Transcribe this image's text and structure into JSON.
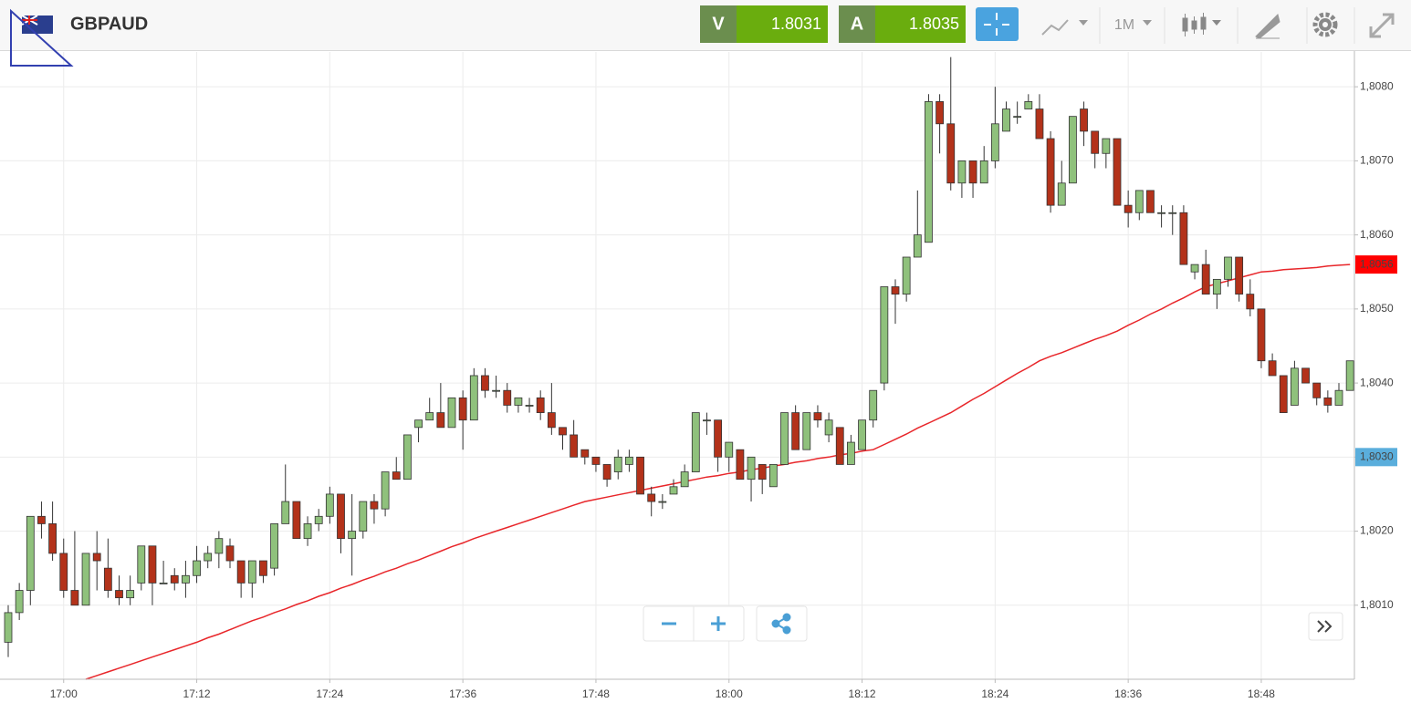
{
  "toolbar": {
    "symbol": "GBPAUD",
    "sell_label": "V",
    "sell_price": "1.8031",
    "buy_label": "A",
    "buy_price": "1.8035",
    "timeframe": "1M"
  },
  "chart_data": {
    "type": "candlestick",
    "categories": [
      null,
      null,
      null,
      null,
      null,
      "17:00",
      null,
      null,
      null,
      null,
      null,
      null,
      null,
      null,
      null,
      null,
      null,
      "17:12",
      null,
      null,
      null,
      null,
      null,
      null,
      null,
      null,
      null,
      null,
      null,
      "17:24",
      null,
      null,
      null,
      null,
      null,
      null,
      null,
      null,
      null,
      null,
      null,
      "17:36",
      null,
      null,
      null,
      null,
      null,
      null,
      null,
      null,
      null,
      null,
      null,
      "17:48",
      null,
      null,
      null,
      null,
      null,
      null,
      null,
      null,
      null,
      null,
      null,
      "18:00",
      null,
      null,
      null,
      null,
      null,
      null,
      null,
      null,
      null,
      null,
      null,
      "18:12",
      null,
      null,
      null,
      null,
      null,
      null,
      null,
      null,
      null,
      null,
      null,
      "18:24",
      null,
      null,
      null,
      null,
      null,
      null,
      null,
      null,
      null,
      null,
      null,
      "18:36",
      null,
      null,
      null,
      null,
      null,
      null,
      null,
      null,
      null,
      null,
      null,
      "18:48",
      null,
      null,
      null,
      null,
      null,
      null,
      null,
      null
    ],
    "open": [
      1.8005,
      1.8009,
      1.8012,
      1.8022,
      1.8021,
      1.8017,
      1.8012,
      1.801,
      1.8017,
      1.8015,
      1.8012,
      1.8011,
      1.8013,
      1.8018,
      1.8013,
      1.8014,
      1.8013,
      1.8014,
      1.8016,
      1.8017,
      1.8018,
      1.8016,
      1.8013,
      1.8016,
      1.8015,
      1.8021,
      1.8024,
      1.8019,
      1.8021,
      1.8022,
      1.8025,
      1.8019,
      1.802,
      1.8024,
      1.8023,
      1.8028,
      1.8027,
      1.8034,
      1.8035,
      1.8036,
      1.8034,
      1.8038,
      1.8035,
      1.8041,
      1.8039,
      1.8039,
      1.8037,
      1.8037,
      1.8038,
      1.8036,
      1.8034,
      1.8033,
      1.8031,
      1.803,
      1.8029,
      1.8028,
      1.8029,
      1.803,
      1.8025,
      1.8024,
      1.8025,
      1.8026,
      1.8028,
      1.8035,
      1.8035,
      1.803,
      1.8031,
      1.8027,
      1.8029,
      1.8026,
      1.8029,
      1.8036,
      1.8031,
      1.8036,
      1.8033,
      1.8034,
      1.8029,
      1.8031,
      1.8035,
      1.804,
      1.8053,
      1.8052,
      1.8057,
      1.8059,
      1.8078,
      1.8075,
      1.8067,
      1.807,
      1.8067,
      1.807,
      1.8074,
      1.8076,
      1.8077,
      1.8077,
      1.8073,
      1.8064,
      1.8067,
      1.8077,
      1.8074,
      1.8071,
      1.8073,
      1.8064,
      1.8063,
      1.8066,
      1.8063,
      1.8063,
      1.8063,
      1.8055,
      1.8056,
      1.8052,
      1.8054,
      1.8057,
      1.8052,
      1.805,
      1.8043,
      1.8041,
      1.8037,
      1.8042,
      1.804,
      1.8038,
      1.8037,
      1.8039
    ],
    "high": [
      1.801,
      1.8013,
      1.8022,
      1.8024,
      1.8024,
      1.8019,
      1.802,
      1.8017,
      1.802,
      1.8019,
      1.8014,
      1.8014,
      1.8018,
      1.8018,
      1.8016,
      1.8015,
      1.8016,
      1.8018,
      1.8018,
      1.802,
      1.8019,
      1.8016,
      1.8016,
      1.8016,
      1.8021,
      1.8029,
      1.8024,
      1.8022,
      1.8023,
      1.8026,
      1.8025,
      1.8025,
      1.8024,
      1.8025,
      1.8028,
      1.803,
      1.8033,
      1.8035,
      1.8038,
      1.804,
      1.8038,
      1.8039,
      1.8042,
      1.8042,
      1.8041,
      1.804,
      1.8038,
      1.8038,
      1.8039,
      1.804,
      1.8034,
      1.8035,
      1.8031,
      1.803,
      1.8029,
      1.8031,
      1.8031,
      1.803,
      1.8026,
      1.8025,
      1.8027,
      1.8029,
      1.8036,
      1.8036,
      1.8035,
      1.8032,
      1.8031,
      1.803,
      1.8029,
      1.8029,
      1.8036,
      1.8037,
      1.8036,
      1.8037,
      1.8036,
      1.8034,
      1.8033,
      1.8035,
      1.8039,
      1.8053,
      1.8054,
      1.8057,
      1.8066,
      1.8079,
      1.8079,
      1.8084,
      1.807,
      1.807,
      1.8072,
      1.808,
      1.8078,
      1.8078,
      1.8079,
      1.8079,
      1.8074,
      1.807,
      1.8076,
      1.8078,
      1.8074,
      1.8073,
      1.8073,
      1.8066,
      1.8066,
      1.8066,
      1.8064,
      1.8064,
      1.8064,
      1.8056,
      1.8058,
      1.8054,
      1.8057,
      1.8057,
      1.8054,
      1.805,
      1.8044,
      1.8041,
      1.8043,
      1.8042,
      1.804,
      1.8039,
      1.804,
      1.8043
    ],
    "low": [
      1.8003,
      1.8008,
      1.801,
      1.8019,
      1.8016,
      1.8011,
      1.801,
      1.801,
      1.8012,
      1.8011,
      1.801,
      1.801,
      1.8012,
      1.801,
      1.8013,
      1.8012,
      1.8011,
      1.8013,
      1.8015,
      1.8015,
      1.8015,
      1.8011,
      1.8011,
      1.8013,
      1.8014,
      1.8021,
      1.8019,
      1.8018,
      1.802,
      1.8021,
      1.8017,
      1.8014,
      1.8019,
      1.8021,
      1.8022,
      1.8027,
      1.8027,
      1.8032,
      1.8035,
      1.8034,
      1.8034,
      1.8031,
      1.8035,
      1.8038,
      1.8038,
      1.8036,
      1.8036,
      1.8036,
      1.8035,
      1.8033,
      1.8031,
      1.803,
      1.8029,
      1.8028,
      1.8026,
      1.8027,
      1.8028,
      1.8025,
      1.8022,
      1.8023,
      1.8025,
      1.8026,
      1.8028,
      1.8033,
      1.8028,
      1.8028,
      1.8027,
      1.8024,
      1.8025,
      1.8026,
      1.8029,
      1.8031,
      1.8031,
      1.8034,
      1.8032,
      1.8029,
      1.8029,
      1.8031,
      1.8034,
      1.8039,
      1.8048,
      1.8051,
      1.8057,
      1.8059,
      1.8071,
      1.8066,
      1.8065,
      1.8065,
      1.8067,
      1.8069,
      1.8074,
      1.8075,
      1.8077,
      1.8073,
      1.8063,
      1.8064,
      1.8067,
      1.8072,
      1.8069,
      1.8069,
      1.8064,
      1.8061,
      1.8062,
      1.8063,
      1.8061,
      1.806,
      1.8056,
      1.8054,
      1.8052,
      1.805,
      1.8053,
      1.8051,
      1.8049,
      1.8042,
      1.8041,
      1.8036,
      1.8037,
      1.804,
      1.8037,
      1.8036,
      1.8037,
      1.8039
    ],
    "close": [
      1.8009,
      1.8012,
      1.8022,
      1.8021,
      1.8017,
      1.8012,
      1.801,
      1.8017,
      1.8016,
      1.8012,
      1.8011,
      1.8012,
      1.8018,
      1.8013,
      1.8013,
      1.8013,
      1.8014,
      1.8016,
      1.8017,
      1.8019,
      1.8016,
      1.8013,
      1.8016,
      1.8014,
      1.8021,
      1.8024,
      1.8019,
      1.8021,
      1.8022,
      1.8025,
      1.8019,
      1.802,
      1.8024,
      1.8023,
      1.8028,
      1.8027,
      1.8033,
      1.8035,
      1.8036,
      1.8034,
      1.8038,
      1.8035,
      1.8041,
      1.8039,
      1.8039,
      1.8037,
      1.8038,
      1.8037,
      1.8036,
      1.8034,
      1.8033,
      1.803,
      1.803,
      1.8029,
      1.8027,
      1.803,
      1.803,
      1.8025,
      1.8024,
      1.8024,
      1.8026,
      1.8028,
      1.8036,
      1.8035,
      1.803,
      1.8032,
      1.8027,
      1.803,
      1.8027,
      1.8029,
      1.8036,
      1.8031,
      1.8036,
      1.8035,
      1.8035,
      1.8029,
      1.8032,
      1.8035,
      1.8039,
      1.8053,
      1.8052,
      1.8057,
      1.806,
      1.8078,
      1.8075,
      1.8067,
      1.807,
      1.8067,
      1.807,
      1.8075,
      1.8077,
      1.8076,
      1.8078,
      1.8073,
      1.8064,
      1.8067,
      1.8076,
      1.8074,
      1.8071,
      1.8073,
      1.8064,
      1.8063,
      1.8066,
      1.8063,
      1.8063,
      1.8063,
      1.8056,
      1.8056,
      1.8052,
      1.8054,
      1.8057,
      1.8052,
      1.805,
      1.8043,
      1.8041,
      1.8036,
      1.8042,
      1.804,
      1.8038,
      1.8037,
      1.8039,
      1.8043
    ],
    "up_color": "#8fc17c",
    "down_color": "#b3321a",
    "ma": {
      "color": "#e8262a",
      "values": [
        null,
        null,
        null,
        null,
        null,
        null,
        null,
        1.8,
        1.80005,
        1.8001,
        1.80015,
        1.8002,
        1.80025,
        1.8003,
        1.80035,
        1.8004,
        1.80045,
        1.8005,
        1.80056,
        1.80061,
        1.80067,
        1.80073,
        1.80079,
        1.80084,
        1.8009,
        1.80095,
        1.80101,
        1.80106,
        1.80112,
        1.80117,
        1.80123,
        1.80128,
        1.80134,
        1.80139,
        1.80145,
        1.8015,
        1.80156,
        1.80161,
        1.80167,
        1.80173,
        1.80179,
        1.80184,
        1.8019,
        1.80195,
        1.802,
        1.80205,
        1.8021,
        1.80215,
        1.8022,
        1.80225,
        1.8023,
        1.80235,
        1.8024,
        1.80243,
        1.80246,
        1.80249,
        1.80252,
        1.80255,
        1.80258,
        1.80261,
        1.80264,
        1.80267,
        1.8027,
        1.80273,
        1.80275,
        1.80278,
        1.8028,
        1.80283,
        1.80285,
        1.80288,
        1.8029,
        1.80293,
        1.80295,
        1.80298,
        1.803,
        1.80303,
        1.80305,
        1.80308,
        1.8031,
        1.80317,
        1.80324,
        1.80331,
        1.80339,
        1.80346,
        1.80353,
        1.8036,
        1.80369,
        1.80378,
        1.80386,
        1.80395,
        1.80404,
        1.80413,
        1.80421,
        1.8043,
        1.80436,
        1.80441,
        1.80447,
        1.80453,
        1.80459,
        1.80464,
        1.8047,
        1.80478,
        1.80485,
        1.80493,
        1.805,
        1.80508,
        1.80515,
        1.80523,
        1.8053,
        1.80534,
        1.80538,
        1.80542,
        1.80546,
        1.8055,
        1.80551,
        1.80553,
        1.80554,
        1.80555,
        1.80556,
        1.80558,
        1.80559,
        1.8056
      ]
    },
    "ma_tag": {
      "value": 1.8056,
      "label": "1,8056",
      "color": "#ff0000"
    },
    "price_tag": {
      "value": 1.803,
      "label": "1,8030",
      "color": "#5aaedc"
    },
    "ylim": [
      1.8,
      1.80847
    ],
    "yticks": [
      {
        "value": 1.801,
        "label": "1,8010"
      },
      {
        "value": 1.802,
        "label": "1,8020"
      },
      {
        "value": 1.803,
        "label": "1,8030"
      },
      {
        "value": 1.804,
        "label": "1,8040"
      },
      {
        "value": 1.805,
        "label": "1,8050"
      },
      {
        "value": 1.806,
        "label": "1,8060"
      },
      {
        "value": 1.807,
        "label": "1,8070"
      },
      {
        "value": 1.808,
        "label": "1,8080"
      }
    ],
    "grid": true
  }
}
